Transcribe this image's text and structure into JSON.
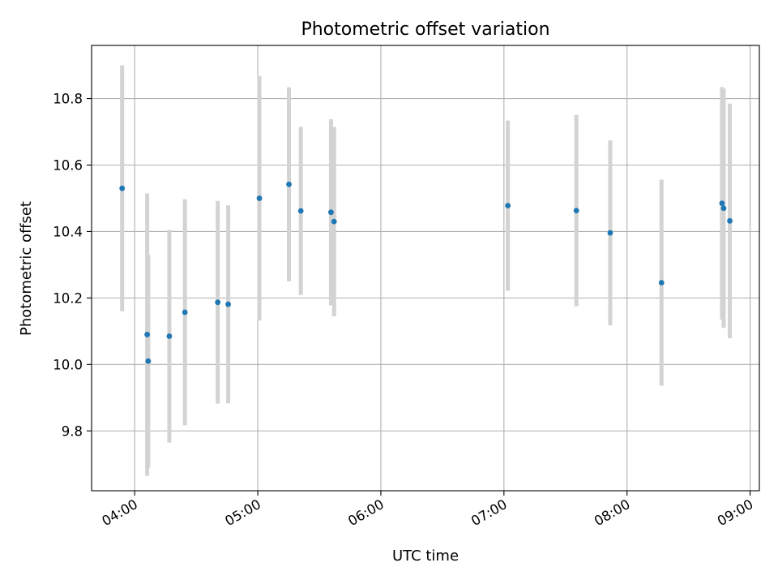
{
  "chart_data": {
    "type": "scatter",
    "title": "Photometric offset variation",
    "xlabel": "UTC time",
    "ylabel": "Photometric offset",
    "x_tick_labels": [
      "04:00",
      "05:00",
      "06:00",
      "07:00",
      "08:00",
      "09:00"
    ],
    "x_tick_minutes": [
      240,
      300,
      360,
      420,
      480,
      540
    ],
    "y_ticks": [
      9.8,
      10.0,
      10.2,
      10.4,
      10.6,
      10.8
    ],
    "y_tick_labels": [
      "9.8",
      "10.0",
      "10.2",
      "10.4",
      "10.6",
      "10.8"
    ],
    "xlim_minutes": [
      219,
      544.5
    ],
    "ylim": [
      9.62,
      10.96
    ],
    "grid": true,
    "marker_color": "#1f77b4",
    "errorbar_color": "#d3d3d3",
    "points": [
      {
        "t": 233.9,
        "y": 10.53,
        "err": 0.37
      },
      {
        "t": 246.1,
        "y": 10.09,
        "err": 0.425
      },
      {
        "t": 246.6,
        "y": 10.01,
        "err": 0.32
      },
      {
        "t": 256.9,
        "y": 10.085,
        "err": 0.32
      },
      {
        "t": 264.5,
        "y": 10.157,
        "err": 0.34
      },
      {
        "t": 280.5,
        "y": 10.187,
        "err": 0.305
      },
      {
        "t": 285.6,
        "y": 10.181,
        "err": 0.298
      },
      {
        "t": 300.8,
        "y": 10.5,
        "err": 0.368
      },
      {
        "t": 315.2,
        "y": 10.542,
        "err": 0.292
      },
      {
        "t": 321.0,
        "y": 10.462,
        "err": 0.253
      },
      {
        "t": 335.7,
        "y": 10.458,
        "err": 0.28
      },
      {
        "t": 337.2,
        "y": 10.43,
        "err": 0.285
      },
      {
        "t": 421.9,
        "y": 10.478,
        "err": 0.256
      },
      {
        "t": 455.3,
        "y": 10.463,
        "err": 0.288
      },
      {
        "t": 471.8,
        "y": 10.396,
        "err": 0.278
      },
      {
        "t": 496.8,
        "y": 10.246,
        "err": 0.31
      },
      {
        "t": 526.3,
        "y": 10.485,
        "err": 0.35
      },
      {
        "t": 527.1,
        "y": 10.47,
        "err": 0.36
      },
      {
        "t": 530.1,
        "y": 10.432,
        "err": 0.353
      }
    ]
  }
}
